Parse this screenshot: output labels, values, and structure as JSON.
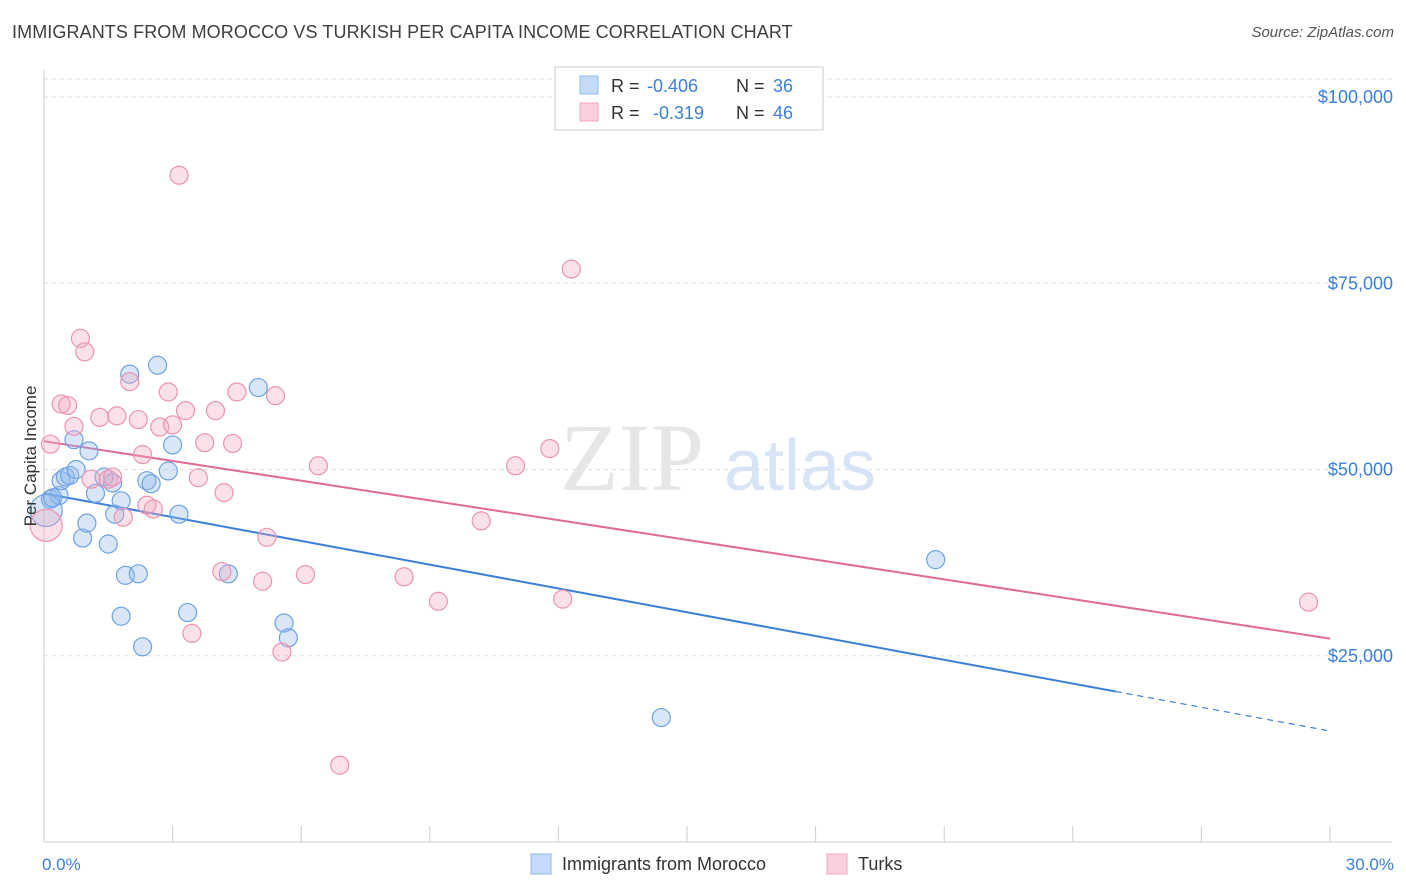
{
  "title": "IMMIGRANTS FROM MOROCCO VS TURKISH PER CAPITA INCOME CORRELATION CHART",
  "source": "Source: ZipAtlas.com",
  "watermark": {
    "zip": "ZIP",
    "atlas": "atlas"
  },
  "colors": {
    "blue": "#8fb8ec",
    "blue_line": "#3b7fd9",
    "pink": "#f2a9c0",
    "pink_line": "#e06b97",
    "axis_label": "#3b7fd9",
    "grid": "#dddddd"
  },
  "legend_top": [
    {
      "r_label": "R =",
      "r_value": "-0.406",
      "n_label": "N =",
      "n_value": "36"
    },
    {
      "r_label": "R =",
      "r_value": "-0.319",
      "n_label": "N =",
      "n_value": "46"
    }
  ],
  "chart_data": {
    "type": "scatter",
    "ylabel": "Per Capita Income",
    "xlim": [
      0,
      30
    ],
    "ylim": [
      0,
      105000
    ],
    "x_tick_labels": {
      "min": "0.0%",
      "max": "30.0%"
    },
    "y_ticks": [
      {
        "value": 25000,
        "label": "$25,000"
      },
      {
        "value": 50000,
        "label": "$50,000"
      },
      {
        "value": 75000,
        "label": "$75,000"
      },
      {
        "value": 100000,
        "label": "$100,000"
      }
    ],
    "grid": true,
    "legend_position": "bottom",
    "series": [
      {
        "name": "Immigrants from Morocco",
        "color": "#8fb8ec",
        "points": [
          [
            0.15,
            46000
          ],
          [
            0.35,
            46500
          ],
          [
            0.4,
            48500
          ],
          [
            0.5,
            49000
          ],
          [
            0.6,
            49200
          ],
          [
            0.7,
            54000
          ],
          [
            0.75,
            50000
          ],
          [
            0.9,
            40800
          ],
          [
            1.0,
            42800
          ],
          [
            1.05,
            52500
          ],
          [
            1.2,
            46800
          ],
          [
            1.4,
            49000
          ],
          [
            1.5,
            40000
          ],
          [
            1.6,
            48200
          ],
          [
            1.65,
            44000
          ],
          [
            1.8,
            45800
          ],
          [
            1.9,
            35800
          ],
          [
            2.0,
            62800
          ],
          [
            2.2,
            36000
          ],
          [
            2.3,
            26200
          ],
          [
            2.4,
            48500
          ],
          [
            2.5,
            48100
          ],
          [
            2.65,
            64000
          ],
          [
            2.9,
            49800
          ],
          [
            3.0,
            53300
          ],
          [
            3.15,
            44000
          ],
          [
            3.35,
            30800
          ],
          [
            4.3,
            36000
          ],
          [
            5.0,
            61000
          ],
          [
            5.6,
            29400
          ],
          [
            5.7,
            27400
          ],
          [
            14.4,
            16700
          ],
          [
            20.8,
            37900
          ],
          [
            0.05,
            44500
          ],
          [
            1.8,
            30300
          ],
          [
            0.2,
            46200
          ]
        ]
      },
      {
        "name": "Turks",
        "color": "#f2a9c0",
        "points": [
          [
            0.05,
            42500
          ],
          [
            0.15,
            53400
          ],
          [
            0.4,
            58800
          ],
          [
            0.55,
            58600
          ],
          [
            0.7,
            55800
          ],
          [
            0.85,
            67600
          ],
          [
            0.95,
            65800
          ],
          [
            1.1,
            48700
          ],
          [
            1.3,
            57000
          ],
          [
            1.5,
            48700
          ],
          [
            1.6,
            49000
          ],
          [
            1.7,
            57200
          ],
          [
            1.85,
            43600
          ],
          [
            2.0,
            61800
          ],
          [
            2.2,
            56700
          ],
          [
            2.3,
            52000
          ],
          [
            2.4,
            45200
          ],
          [
            2.55,
            44700
          ],
          [
            2.7,
            55700
          ],
          [
            2.9,
            60400
          ],
          [
            3.0,
            56000
          ],
          [
            3.15,
            89500
          ],
          [
            3.3,
            57900
          ],
          [
            3.45,
            28000
          ],
          [
            3.6,
            48900
          ],
          [
            3.75,
            53600
          ],
          [
            4.0,
            57900
          ],
          [
            4.15,
            36300
          ],
          [
            4.2,
            46900
          ],
          [
            4.4,
            53500
          ],
          [
            4.5,
            60400
          ],
          [
            5.1,
            35000
          ],
          [
            5.2,
            40900
          ],
          [
            5.4,
            59900
          ],
          [
            5.55,
            25500
          ],
          [
            6.1,
            35900
          ],
          [
            6.4,
            50500
          ],
          [
            6.9,
            10300
          ],
          [
            8.4,
            35600
          ],
          [
            9.2,
            32300
          ],
          [
            10.2,
            43100
          ],
          [
            11.0,
            50500
          ],
          [
            11.8,
            52800
          ],
          [
            12.1,
            32600
          ],
          [
            12.3,
            76900
          ],
          [
            29.5,
            32200
          ]
        ]
      }
    ],
    "trendlines": [
      {
        "series": "Immigrants from Morocco",
        "x": [
          0,
          25
        ],
        "y": [
          46800,
          20200
        ],
        "dashed_to": [
          30,
          14900
        ]
      },
      {
        "series": "Turks",
        "x": [
          0,
          30
        ],
        "y": [
          53800,
          27300
        ]
      }
    ]
  }
}
